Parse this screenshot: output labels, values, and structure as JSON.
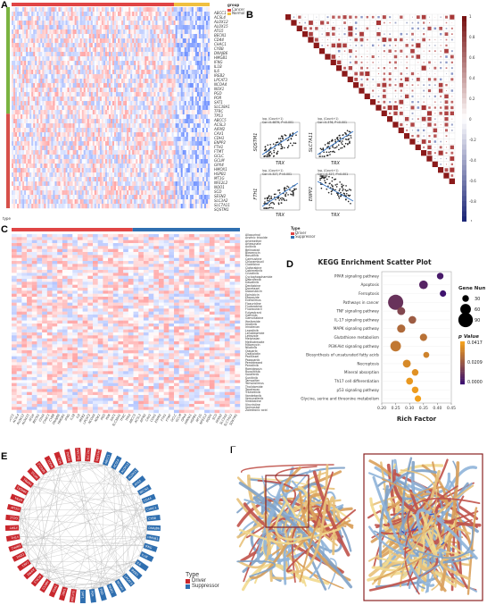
{
  "panels": {
    "A": {
      "label": "A",
      "group_title": "group",
      "group_items": [
        "Cancer",
        "Normal"
      ],
      "type_items": [
        "Driver",
        "Suppressor"
      ],
      "colorbar_ticks": [
        "2",
        "1",
        "0",
        "-1",
        "-2"
      ],
      "bottom_label": "type",
      "genes": [
        "ABCC1",
        "ACSL4",
        "ALOX12",
        "ALOX15",
        "ATG5",
        "BECN1",
        "CD44",
        "CHAC1",
        "CYBB",
        "DNAJB6",
        "HMGB1",
        "IFNG",
        "IL1B",
        "IL6",
        "IREB2",
        "LPCAT3",
        "NCOA4",
        "NOX1",
        "PGD",
        "POR",
        "SAT1",
        "SLC38A1",
        "TFRC",
        "TP53",
        "ABCC5",
        "ACSL3",
        "AIFM2",
        "CAV1",
        "CDH1",
        "ENPP2",
        "FTH1",
        "FTMT",
        "GCLC",
        "GCLM",
        "GPX4",
        "HMOX1",
        "HSPB1",
        "MT1G",
        "NFE2L2",
        "NQO1",
        "SCD",
        "SESN2",
        "SLC3A2",
        "SLC7A11",
        "SQSTM1"
      ]
    },
    "B": {
      "label": "B",
      "colorbar_ticks": [
        "1",
        "0.8",
        "0.6",
        "0.4",
        "0.2",
        "0",
        "-0.2",
        "-0.4",
        "-0.6",
        "-0.8",
        "-1"
      ],
      "scatters": [
        {
          "stat": "log, (Count+1)\nCor=0.4879, P<0.001",
          "ylabel": "SQSTM1",
          "xlabel": "TRX"
        },
        {
          "stat": "log, (Count+1)\nCor=0.376, P<0.001",
          "ylabel": "SLC7A11",
          "xlabel": "TRX"
        },
        {
          "stat": "log, (Count+1)\nCor=0.327, P<0.001",
          "ylabel": "FTH1",
          "xlabel": "TRX"
        },
        {
          "stat": "log, (Count+1)\nCor=-0.327, P<0.001",
          "ylabel": "ENPP2",
          "xlabel": "TRX"
        }
      ]
    },
    "C": {
      "label": "C",
      "type_title": "Type",
      "type_items": [
        "Driver",
        "Suppressor"
      ],
      "colorbar_ticks": [
        "0.4",
        "0.2",
        "0",
        "-0.2",
        "-0.4"
      ],
      "drugs": [
        "Allopurinol",
        "Arsenic trioxide",
        "Artemether",
        "Artesunate",
        "Axitinib",
        "Belinostat",
        "Bleomycin",
        "Bosutinib",
        "Carmustine",
        "Chlorambucil",
        "Cladribine",
        "Clofarabine",
        "Cobimetinib",
        "Crizotinib",
        "Cyclophosphamide",
        "Dabrafenib",
        "Dasatinib",
        "Decitabine",
        "Docetaxel",
        "Doxorubicin",
        "Epirubicin",
        "Etoposide",
        "Everolimus",
        "Floxuridine",
        "Fludarabine",
        "Fluorouracil",
        "Fulvestrant",
        "Gefitinib",
        "Gemcitabine",
        "Ifosfamide",
        "Imatinib",
        "Irinotecan",
        "Lapatinib",
        "Lenalidomide",
        "Letrozole",
        "Melphalan",
        "Methotrexate",
        "Mitomycin",
        "Nilotinib",
        "Olaparib",
        "Oxaliplatin",
        "Paclitaxel",
        "Pazopanib",
        "Pemetrexed",
        "Ponatinib",
        "Romidepsin",
        "Ruxolitinib",
        "Sorafenib",
        "Sunitinib",
        "Tamoxifen",
        "Temsirolimus",
        "Thalidomide",
        "Topotecan",
        "Trametinib",
        "Vandetanib",
        "Vemurafenib",
        "Vinblastine",
        "Vincristine",
        "Vorinostat",
        "Zoledronic acid"
      ]
    },
    "D": {
      "label": "D"
    },
    "E": {
      "label": "E",
      "type_title": "Type",
      "type_items": [
        "Driver",
        "Suppressor"
      ]
    },
    "F": {
      "label": "F"
    }
  },
  "chart_data": [
    {
      "type": "scatter",
      "title": "KEGG Enrichment Scatter Plot",
      "xlabel": "Rich Factor",
      "ylabel": "",
      "xlim": [
        0.2,
        0.45
      ],
      "x_ticks": [
        "0.20",
        "0.25",
        "0.30",
        "0.35",
        "0.40",
        "0.45"
      ],
      "categories": [
        "PPAR signaling pathway",
        "Apoptosis",
        "Ferroptosis",
        "Pathways in cancer",
        "TNF signaling pathway",
        "IL-17 signaling pathway",
        "MAPK signaling pathway",
        "Glutathione metabolism",
        "PI3K-Akt signaling pathway",
        "Biosynthesis of unsaturated fatty acids",
        "Necroptosis",
        "Mineral absorption",
        "Th17 cell differentiation",
        "p53 signaling pathway",
        "Glycine, serine and threonine metabolism"
      ],
      "points": [
        {
          "x": 0.41,
          "gene_number": 30,
          "p_value": 0.003
        },
        {
          "x": 0.35,
          "gene_number": 45,
          "p_value": 0.006
        },
        {
          "x": 0.42,
          "gene_number": 28,
          "p_value": 0.001
        },
        {
          "x": 0.25,
          "gene_number": 95,
          "p_value": 0.01
        },
        {
          "x": 0.27,
          "gene_number": 40,
          "p_value": 0.016
        },
        {
          "x": 0.31,
          "gene_number": 38,
          "p_value": 0.022
        },
        {
          "x": 0.27,
          "gene_number": 42,
          "p_value": 0.026
        },
        {
          "x": 0.35,
          "gene_number": 35,
          "p_value": 0.028
        },
        {
          "x": 0.25,
          "gene_number": 60,
          "p_value": 0.03
        },
        {
          "x": 0.36,
          "gene_number": 25,
          "p_value": 0.033
        },
        {
          "x": 0.29,
          "gene_number": 40,
          "p_value": 0.035
        },
        {
          "x": 0.32,
          "gene_number": 30,
          "p_value": 0.037
        },
        {
          "x": 0.3,
          "gene_number": 32,
          "p_value": 0.039
        },
        {
          "x": 0.32,
          "gene_number": 30,
          "p_value": 0.04
        },
        {
          "x": 0.33,
          "gene_number": 28,
          "p_value": 0.041
        }
      ],
      "size_legend": {
        "title": "Gene Number",
        "values": [
          30,
          60,
          90
        ]
      },
      "color_legend": {
        "title": "p Value",
        "ticks": [
          "0.0417",
          "0.0209",
          "0.0000"
        ],
        "high_color": "#f5a11a",
        "low_color": "#3b0f70"
      }
    }
  ],
  "networkE": {
    "driver_count": 24,
    "suppressor_count": 21,
    "driver_color": "#c9272d",
    "suppressor_color": "#2f6fb0"
  },
  "colors": {
    "heat_red": "#c93a3a",
    "heat_blue": "#3a5fb0",
    "group_cancer": "#e04545",
    "group_normal": "#f0c040",
    "type_driver": "#7ab340",
    "type_suppressor": "#d6504a"
  }
}
